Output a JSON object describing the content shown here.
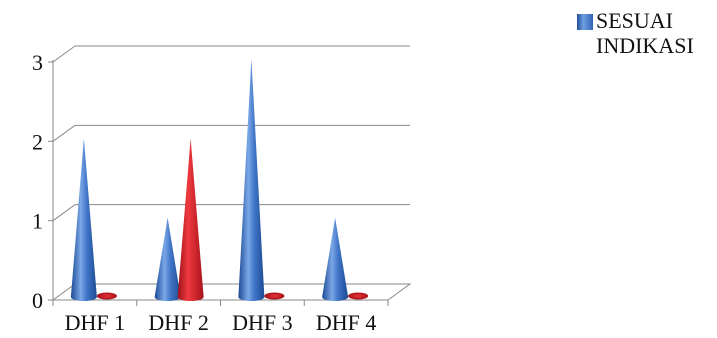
{
  "chart_data": {
    "type": "bar",
    "style": "3d-cone",
    "categories": [
      "DHF 1",
      "DHF 2",
      "DHF 3",
      "DHF 4"
    ],
    "series": [
      {
        "name": "SESUAI INDIKASI",
        "values": [
          2,
          1,
          3,
          1
        ],
        "color": "#3a6fbf"
      },
      {
        "values": [
          0,
          2,
          0,
          0
        ],
        "color": "#d21f26"
      }
    ],
    "ylim": [
      0,
      3
    ],
    "yticks": [
      "0",
      "1",
      "2",
      "3"
    ],
    "grid": true,
    "legend_position": "top-right"
  }
}
